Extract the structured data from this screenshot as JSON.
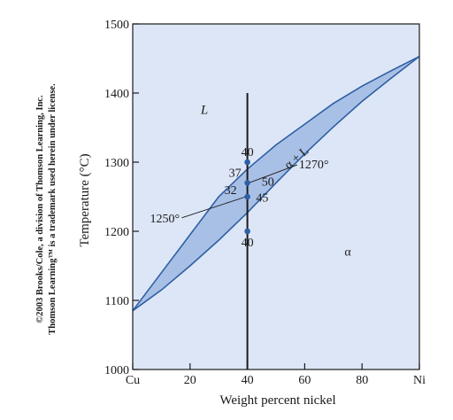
{
  "chart_data": {
    "type": "area",
    "xlabel": "Weight percent nickel",
    "ylabel": "Temperature (°C)",
    "xlim": [
      0,
      100
    ],
    "ylim": [
      1000,
      1500
    ],
    "x_ticks": [
      {
        "value": 0,
        "label": "Cu"
      },
      {
        "value": 20,
        "label": "20"
      },
      {
        "value": 40,
        "label": "40"
      },
      {
        "value": 60,
        "label": "60"
      },
      {
        "value": 80,
        "label": "80"
      },
      {
        "value": 100,
        "label": "Ni"
      }
    ],
    "y_ticks": [
      {
        "value": 1000,
        "label": "1000"
      },
      {
        "value": 1100,
        "label": "1100"
      },
      {
        "value": 1200,
        "label": "1200"
      },
      {
        "value": 1300,
        "label": "1300"
      },
      {
        "value": 1400,
        "label": "1400"
      },
      {
        "value": 1500,
        "label": "1500"
      }
    ],
    "grid": false,
    "background_color": "#dde6f7",
    "two_phase_fill": "#a9c0e6",
    "line_color": "#2d5fa3",
    "series": [
      {
        "x": [
          0,
          10,
          20,
          30,
          40,
          50,
          60,
          70,
          80,
          90,
          100
        ],
        "y": [
          1085,
          1140,
          1195,
          1250,
          1290,
          1325,
          1355,
          1385,
          1410,
          1432,
          1453
        ]
      },
      {
        "x": [
          0,
          10,
          20,
          30,
          40,
          50,
          60,
          70,
          80,
          90,
          100
        ],
        "y": [
          1085,
          1115,
          1150,
          1187,
          1227,
          1270,
          1312,
          1351,
          1388,
          1421,
          1453
        ]
      }
    ],
    "vertical_line": {
      "x": 40,
      "y_range": [
        1000,
        1400
      ],
      "color": "#1a1a1a"
    },
    "points": [
      {
        "x": 40,
        "y": 1300,
        "label": "40",
        "label_pos": "above"
      },
      {
        "x": 40,
        "y": 1270,
        "label": "37",
        "label_pos": "upper-left"
      },
      {
        "x": 40,
        "y": 1250,
        "label": "32",
        "label_pos": "left"
      },
      {
        "x": 40,
        "y": 1200,
        "label": "40",
        "label_pos": "below"
      }
    ],
    "annotations": [
      {
        "text": "50",
        "x": 45,
        "y": 1266
      },
      {
        "text": "45",
        "x": 43,
        "y": 1243
      },
      {
        "text": "1270°",
        "x": 58,
        "y": 1291,
        "leader_to": {
          "x": 40.5,
          "y": 1270
        }
      },
      {
        "text": "1250°",
        "x": 6,
        "y": 1213,
        "leader_to": {
          "x": 39.5,
          "y": 1250
        }
      }
    ],
    "phase_labels": [
      {
        "text": "L",
        "x": 25,
        "y": 1370,
        "italic": true
      },
      {
        "text": "α + L",
        "x": 58,
        "y": 1302,
        "rotate": -40
      },
      {
        "text": "α",
        "x": 75,
        "y": 1165
      }
    ]
  },
  "credit": {
    "line1": "©2003 Brooks/Cole, a division of Thomson Learning, Inc.",
    "line2": "Thomson Learning™ is a trademark used herein under license."
  }
}
